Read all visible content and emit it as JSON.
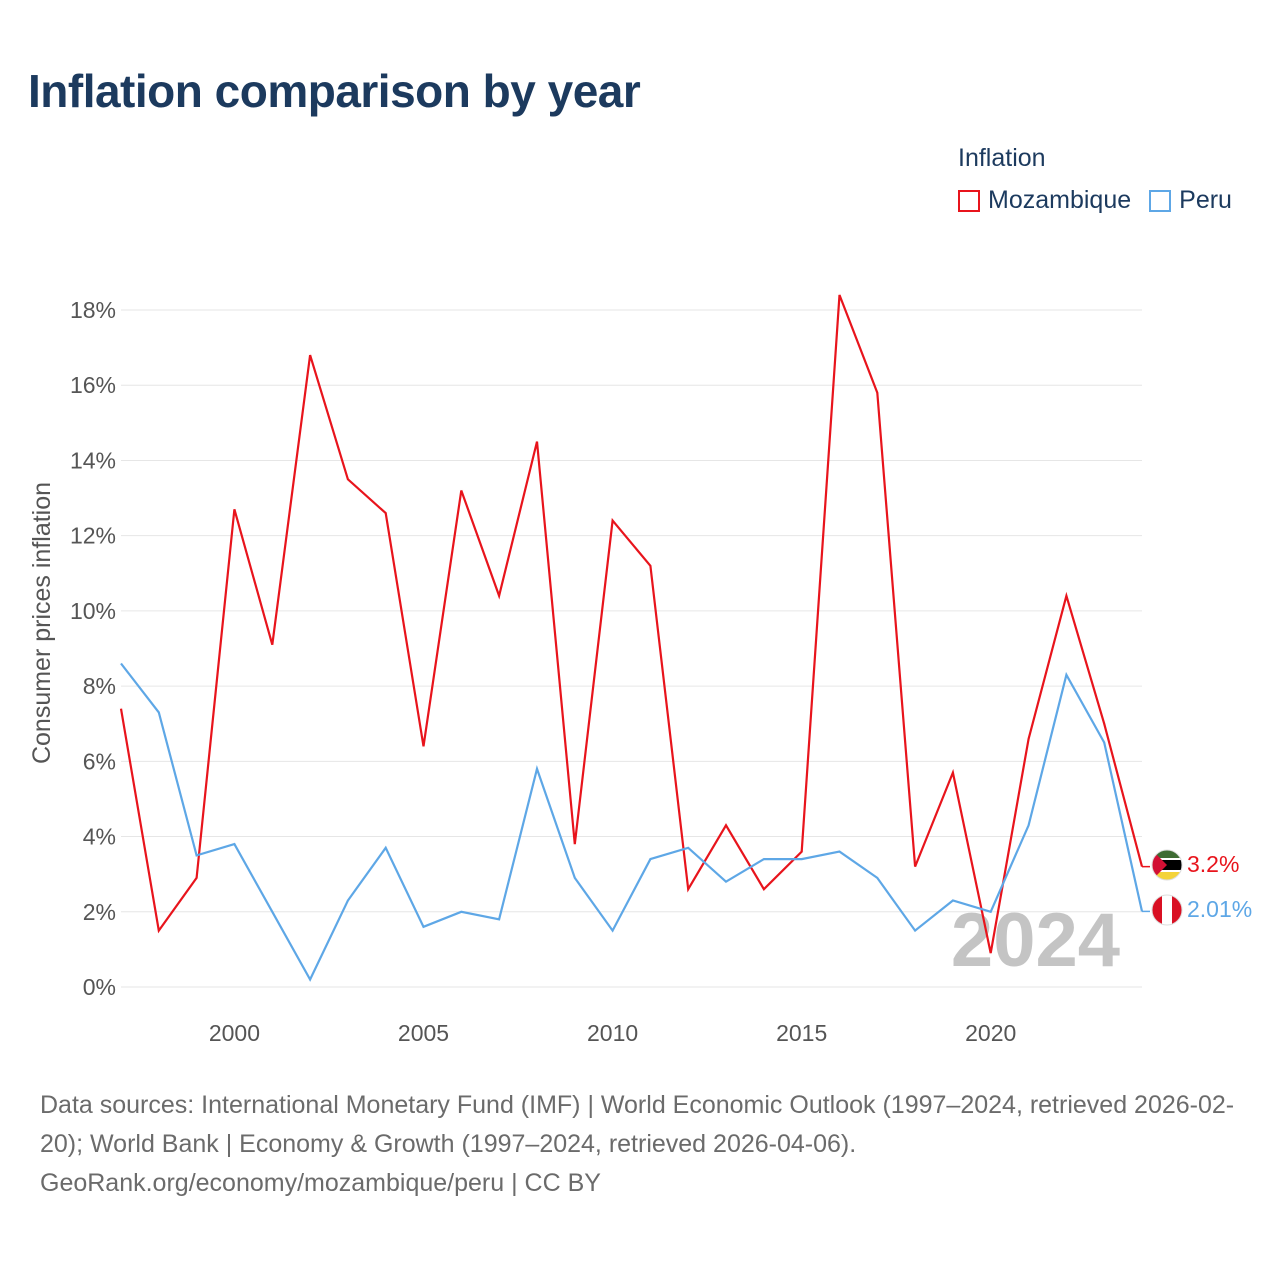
{
  "title": "Inflation comparison by year",
  "legend": {
    "title": "Inflation",
    "items": [
      {
        "name": "Mozambique",
        "color": "#e8141c"
      },
      {
        "name": "Peru",
        "color": "#5ea7e6"
      }
    ]
  },
  "footer": {
    "sources": "Data sources: International Monetary Fund (IMF) | World Economic Outlook (1997–2024, retrieved 2026-02-20); World Bank | Economy & Growth (1997–2024, retrieved 2026-04-06).",
    "credit": "GeoRank.org/economy/mozambique/peru | CC BY"
  },
  "chart_data": {
    "type": "line",
    "title": "Inflation comparison by year",
    "ylabel": "Consumer prices inflation",
    "xlabel": "",
    "x": [
      1997,
      1998,
      1999,
      2000,
      2001,
      2002,
      2003,
      2004,
      2005,
      2006,
      2007,
      2008,
      2009,
      2010,
      2011,
      2012,
      2013,
      2014,
      2015,
      2016,
      2017,
      2018,
      2019,
      2020,
      2021,
      2022,
      2023,
      2024
    ],
    "xlim": [
      1997,
      2024
    ],
    "ylim": [
      0,
      18
    ],
    "x_ticks": [
      2000,
      2005,
      2010,
      2015,
      2020
    ],
    "y_ticks": [
      0,
      2,
      4,
      6,
      8,
      10,
      12,
      14,
      16,
      18
    ],
    "y_tick_labels": [
      "0%",
      "2%",
      "4%",
      "6%",
      "8%",
      "10%",
      "12%",
      "14%",
      "16%",
      "18%"
    ],
    "current_year_label": "2024",
    "grid": true,
    "series": [
      {
        "name": "Mozambique",
        "color": "#e8141c",
        "values": [
          7.4,
          1.5,
          2.9,
          12.7,
          9.1,
          16.8,
          13.5,
          12.6,
          6.4,
          13.2,
          10.4,
          14.5,
          3.8,
          12.4,
          11.2,
          2.6,
          4.3,
          2.6,
          3.6,
          18.4,
          15.8,
          3.2,
          5.7,
          0.9,
          6.6,
          10.4,
          7.0,
          3.2
        ],
        "end_label": "3.2%"
      },
      {
        "name": "Peru",
        "color": "#5ea7e6",
        "values": [
          8.6,
          7.3,
          3.5,
          3.8,
          2.0,
          0.2,
          2.3,
          3.7,
          1.6,
          2.0,
          1.8,
          5.8,
          2.9,
          1.5,
          3.4,
          3.7,
          2.8,
          3.4,
          3.4,
          3.6,
          2.9,
          1.5,
          2.3,
          2.0,
          4.3,
          8.3,
          6.5,
          2.01
        ],
        "end_label": "2.01%"
      }
    ]
  }
}
